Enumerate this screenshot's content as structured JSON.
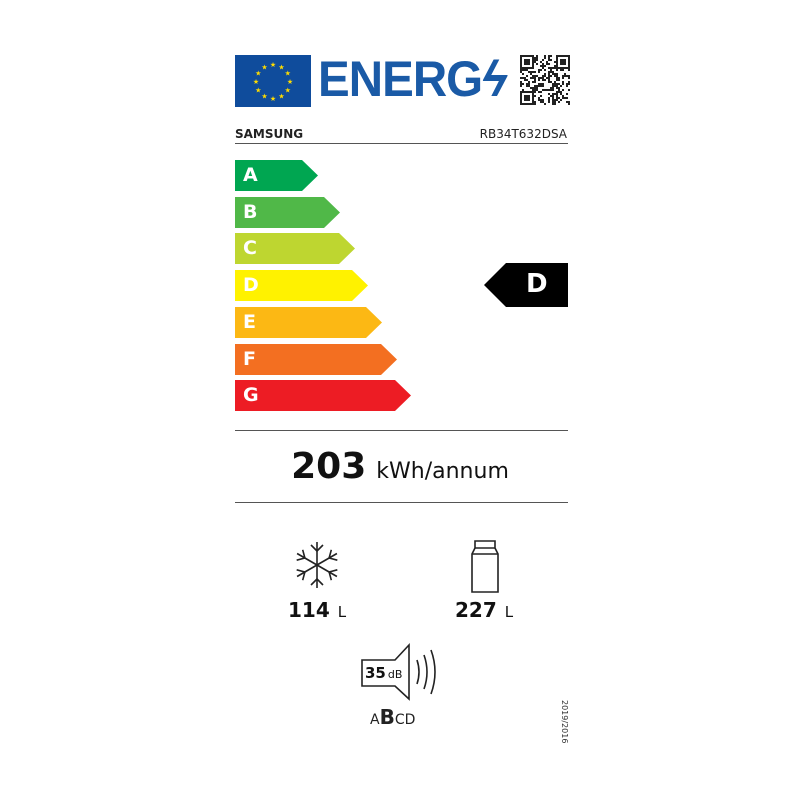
{
  "header": {
    "logo_text": "ENERG",
    "brand": "SAMSUNG",
    "model": "RB34T632DSA"
  },
  "scale": [
    {
      "label": "A",
      "color": "#00a651"
    },
    {
      "label": "B",
      "color": "#50b848"
    },
    {
      "label": "C",
      "color": "#bed630"
    },
    {
      "label": "D",
      "color": "#fff200"
    },
    {
      "label": "E",
      "color": "#fcb814"
    },
    {
      "label": "F",
      "color": "#f36f21"
    },
    {
      "label": "G",
      "color": "#ed1c24"
    }
  ],
  "rating": {
    "class": "D",
    "color": "#000000"
  },
  "energy": {
    "value": "203",
    "unit": "kWh/annum"
  },
  "freezer": {
    "icon": "snowflake-icon",
    "value": "114",
    "unit": "L"
  },
  "fridge": {
    "icon": "fridge-icon",
    "value": "227",
    "unit": "L"
  },
  "noise": {
    "icon": "speaker-icon",
    "value": "35",
    "unit": "dB",
    "classes_pre": "A",
    "class": "B",
    "classes_post": "CD"
  },
  "regulation": "2019/2016"
}
